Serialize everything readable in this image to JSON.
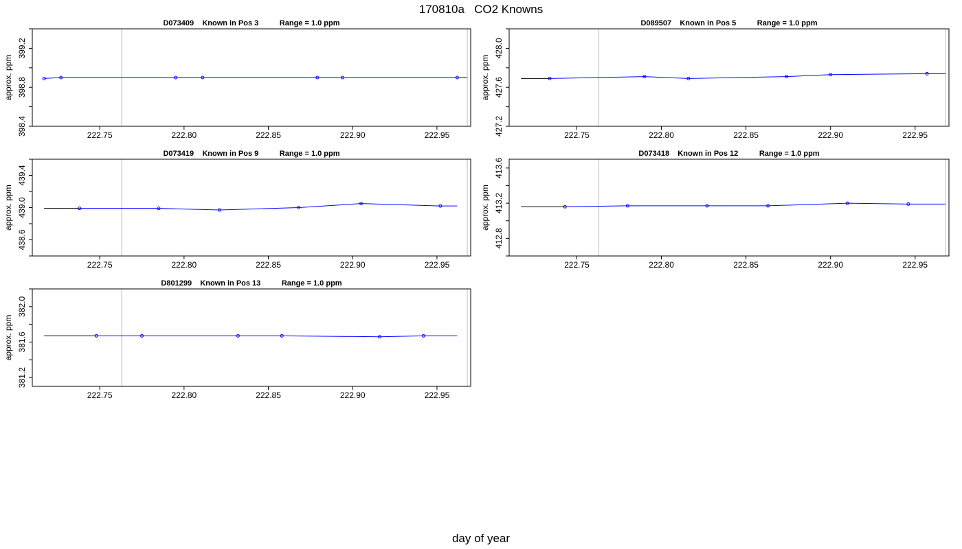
{
  "title": "170810a   CO2 Knowns",
  "xlabel": "day of year",
  "ylabel": "approx. ppm",
  "colors": {
    "series": "#0000ff",
    "trend_start": "#000000",
    "vline": "#c8c8c8",
    "frame": "#000000"
  },
  "chart_data": [
    {
      "type": "line",
      "title": "D073409    Known in Pos 3          Range = 1.0 ppm",
      "xlabel": "day of year",
      "ylabel": "approx. ppm",
      "xlim": [
        222.71,
        222.97
      ],
      "ylim": [
        398.4,
        399.4
      ],
      "xticks": [
        "222.75",
        "222.80",
        "222.85",
        "222.90",
        "222.95"
      ],
      "yticks": [
        "398.4",
        "398.8",
        "399.2"
      ],
      "vlines": [
        222.763,
        222.968
      ],
      "x": [
        222.717,
        222.727,
        222.795,
        222.811,
        222.879,
        222.894,
        222.962
      ],
      "y": [
        398.89,
        398.9,
        398.9,
        398.9,
        398.9,
        398.9,
        398.9
      ],
      "line_x_range": [
        222.717,
        222.968
      ]
    },
    {
      "type": "line",
      "title": "D089507    Known in Pos 5          Range = 1.0 ppm",
      "xlabel": "day of year",
      "ylabel": "approx. ppm",
      "xlim": [
        222.71,
        222.97
      ],
      "ylim": [
        427.2,
        428.2
      ],
      "xticks": [
        "222.75",
        "222.80",
        "222.85",
        "222.90",
        "222.95"
      ],
      "yticks": [
        "427.2",
        "427.6",
        "428.0"
      ],
      "vlines": [
        222.763,
        222.968
      ],
      "x": [
        222.734,
        222.79,
        222.816,
        222.874,
        222.9,
        222.957
      ],
      "y": [
        427.69,
        427.71,
        427.69,
        427.71,
        427.73,
        427.74
      ],
      "line_x_range": [
        222.717,
        222.968
      ]
    },
    {
      "type": "line",
      "title": "D073419    Known in Pos 9          Range = 1.0 ppm",
      "xlabel": "day of year",
      "ylabel": "approx. ppm",
      "xlim": [
        222.71,
        222.97
      ],
      "ylim": [
        438.4,
        439.6
      ],
      "xticks": [
        "222.75",
        "222.80",
        "222.85",
        "222.90",
        "222.95"
      ],
      "yticks": [
        "438.6",
        "439.0",
        "439.4"
      ],
      "vlines": [
        222.763,
        222.968
      ],
      "x": [
        222.738,
        222.785,
        222.821,
        222.868,
        222.905,
        222.952
      ],
      "y": [
        438.99,
        438.99,
        438.97,
        439.0,
        439.05,
        439.02
      ],
      "line_x_range": [
        222.717,
        222.962
      ]
    },
    {
      "type": "line",
      "title": "D073418    Known in Pos 12          Range = 1.0 ppm",
      "xlabel": "day of year",
      "ylabel": "approx. ppm",
      "xlim": [
        222.71,
        222.97
      ],
      "ylim": [
        412.6,
        413.7
      ],
      "xticks": [
        "222.75",
        "222.80",
        "222.85",
        "222.90",
        "222.95"
      ],
      "yticks": [
        "412.8",
        "413.2",
        "413.6"
      ],
      "vlines": [
        222.763,
        222.968
      ],
      "x": [
        222.743,
        222.78,
        222.827,
        222.863,
        222.91,
        222.946
      ],
      "y": [
        413.16,
        413.17,
        413.17,
        413.17,
        413.2,
        413.19
      ],
      "line_x_range": [
        222.717,
        222.968
      ]
    },
    {
      "type": "line",
      "title": "D801299    Known in Pos 13          Range = 1.0 ppm",
      "xlabel": "day of year",
      "ylabel": "approx. ppm",
      "xlim": [
        222.71,
        222.97
      ],
      "ylim": [
        381.1,
        382.2
      ],
      "xticks": [
        "222.75",
        "222.80",
        "222.85",
        "222.90",
        "222.95"
      ],
      "yticks": [
        "381.2",
        "381.6",
        "382.0"
      ],
      "vlines": [
        222.763,
        222.968
      ],
      "x": [
        222.748,
        222.775,
        222.832,
        222.858,
        222.916,
        222.942
      ],
      "y": [
        381.67,
        381.67,
        381.67,
        381.67,
        381.66,
        381.67
      ],
      "line_x_range": [
        222.717,
        222.962
      ]
    }
  ]
}
